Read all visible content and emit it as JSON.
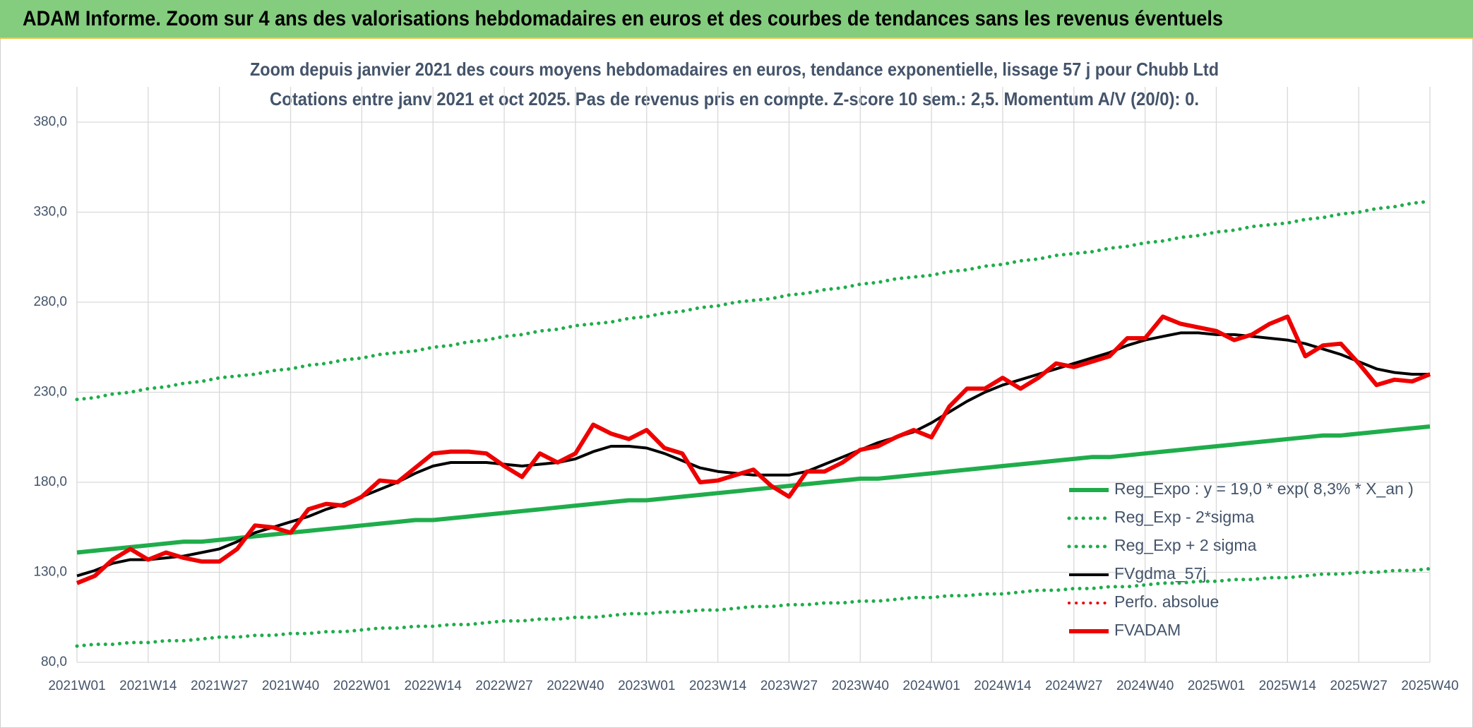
{
  "chart_data": {
    "type": "line",
    "title": "ADAM Informe. Zoom sur 4 ans des valorisations hebdomadaires en euros et des courbes de tendances sans les revenus éventuels",
    "subtitle": [
      "Zoom depuis janvier 2021 des cours moyens hebdomadaires en euros, tendance exponentielle, lissage 57 j pour Chubb Ltd",
      "Cotations entre janv 2021 et oct 2025. Pas de revenus pris en compte. Z-score 10 sem.: 2,5. Momentum A/V (20/0): 0."
    ],
    "categories": [
      "2021W01",
      null,
      null,
      null,
      "2021W14",
      null,
      null,
      null,
      "2021W27",
      null,
      null,
      null,
      "2021W40",
      null,
      null,
      null,
      "2022W01",
      null,
      null,
      null,
      "2022W14",
      null,
      null,
      null,
      "2022W27",
      null,
      null,
      null,
      "2022W40",
      null,
      null,
      null,
      "2023W01",
      null,
      null,
      null,
      "2023W14",
      null,
      null,
      null,
      "2023W27",
      null,
      null,
      null,
      "2023W40",
      null,
      null,
      null,
      "2024W01",
      null,
      null,
      null,
      "2024W14",
      null,
      null,
      null,
      "2024W27",
      null,
      null,
      null,
      "2024W40",
      null,
      null,
      null,
      "2025W01",
      null,
      null,
      null,
      "2025W14",
      null,
      null,
      null,
      "2025W27",
      null,
      null,
      null,
      "2025W40"
    ],
    "ylim": [
      80,
      380
    ],
    "yticks": [
      {
        "value": 80,
        "label": "80,0"
      },
      {
        "value": 130,
        "label": "130,0"
      },
      {
        "value": 180,
        "label": "180,0"
      },
      {
        "value": 230,
        "label": "230,0"
      },
      {
        "value": 280,
        "label": "280,0"
      },
      {
        "value": 330,
        "label": "330,0"
      },
      {
        "value": 380,
        "label": "380,0"
      }
    ],
    "grid": true,
    "legend": "bottom-right",
    "series": [
      {
        "name": "Reg_Expo : y = 19,0 * exp( 8,3% *  X_an )",
        "color": "#1fad4b",
        "style": "solid",
        "values": [
          141,
          142,
          143,
          144,
          145,
          146,
          147,
          147,
          148,
          149,
          150,
          151,
          152,
          153,
          154,
          155,
          156,
          157,
          158,
          159,
          159,
          160,
          161,
          162,
          163,
          164,
          165,
          166,
          167,
          168,
          169,
          170,
          170,
          171,
          172,
          173,
          174,
          175,
          176,
          177,
          178,
          179,
          180,
          181,
          182,
          182,
          183,
          184,
          185,
          186,
          187,
          188,
          189,
          190,
          191,
          192,
          193,
          194,
          194,
          195,
          196,
          197,
          198,
          199,
          200,
          201,
          202,
          203,
          204,
          205,
          206,
          206,
          207,
          208,
          209,
          210,
          211
        ]
      },
      {
        "name": "Reg_Exp - 2*sigma",
        "color": "#1fad4b",
        "style": "dotted",
        "values": [
          89,
          90,
          90,
          91,
          91,
          92,
          92,
          93,
          94,
          94,
          95,
          95,
          96,
          96,
          97,
          97,
          98,
          99,
          99,
          100,
          100,
          101,
          101,
          102,
          103,
          103,
          104,
          104,
          105,
          105,
          106,
          107,
          107,
          108,
          108,
          109,
          109,
          110,
          111,
          111,
          112,
          112,
          113,
          113,
          114,
          114,
          115,
          116,
          116,
          117,
          117,
          118,
          118,
          119,
          120,
          120,
          121,
          121,
          122,
          122,
          123,
          124,
          124,
          125,
          125,
          126,
          126,
          127,
          127,
          128,
          129,
          129,
          130,
          130,
          131,
          131,
          132
        ]
      },
      {
        "name": "Reg_Exp + 2 sigma",
        "color": "#1fad4b",
        "style": "dotted",
        "values": [
          226,
          227,
          229,
          230,
          232,
          233,
          235,
          236,
          238,
          239,
          240,
          242,
          243,
          245,
          246,
          248,
          249,
          251,
          252,
          253,
          255,
          256,
          258,
          259,
          261,
          262,
          264,
          265,
          267,
          268,
          269,
          271,
          272,
          274,
          275,
          277,
          278,
          280,
          281,
          282,
          284,
          285,
          287,
          288,
          290,
          291,
          293,
          294,
          295,
          297,
          298,
          300,
          301,
          303,
          304,
          306,
          307,
          308,
          310,
          311,
          313,
          314,
          316,
          317,
          319,
          320,
          322,
          323,
          324,
          326,
          327,
          329,
          330,
          332,
          333,
          335,
          336
        ]
      },
      {
        "name": "FVgdma_57j",
        "color": "#000000",
        "style": "solid",
        "values": [
          128,
          131,
          135,
          137,
          137,
          138,
          139,
          141,
          143,
          147,
          152,
          155,
          158,
          161,
          165,
          168,
          172,
          176,
          180,
          185,
          189,
          191,
          191,
          191,
          190,
          189,
          190,
          191,
          193,
          197,
          200,
          200,
          199,
          196,
          192,
          188,
          186,
          185,
          184,
          184,
          184,
          186,
          190,
          194,
          198,
          202,
          205,
          208,
          213,
          219,
          225,
          230,
          234,
          237,
          240,
          243,
          246,
          249,
          252,
          256,
          259,
          261,
          263,
          263,
          262,
          262,
          261,
          260,
          259,
          257,
          254,
          251,
          247,
          243,
          241,
          240,
          240
        ]
      },
      {
        "name": "Perfo. absolue",
        "color": "#e60000",
        "style": "dotted",
        "values": [
          null,
          null,
          null,
          null,
          null,
          null,
          null,
          null,
          null,
          null,
          null,
          null,
          null,
          null,
          null,
          null,
          null,
          null,
          null,
          null,
          null,
          null,
          null,
          null,
          null,
          null,
          null,
          null,
          null,
          null,
          null,
          null,
          null,
          null,
          null,
          null,
          null,
          null,
          null,
          null,
          null,
          null,
          null,
          null,
          null,
          null,
          null,
          null,
          null,
          null,
          null,
          null,
          null,
          null,
          null,
          null,
          null,
          null,
          null,
          null,
          null,
          null,
          null,
          null,
          null,
          null,
          null,
          null,
          null,
          null,
          null,
          null,
          null,
          null,
          null,
          null,
          null
        ]
      },
      {
        "name": "FVADAM",
        "color": "#ee0000",
        "style": "solid",
        "values": [
          124,
          128,
          137,
          143,
          137,
          141,
          138,
          136,
          136,
          143,
          156,
          155,
          152,
          165,
          168,
          167,
          172,
          181,
          180,
          188,
          196,
          197,
          197,
          196,
          189,
          183,
          196,
          191,
          196,
          212,
          207,
          204,
          209,
          199,
          196,
          180,
          181,
          184,
          187,
          178,
          172,
          186,
          186,
          191,
          198,
          200,
          205,
          209,
          205,
          222,
          232,
          232,
          238,
          232,
          238,
          246,
          244,
          247,
          250,
          260,
          260,
          272,
          268,
          266,
          264,
          259,
          262,
          268,
          272,
          250,
          256,
          257,
          246,
          234,
          237,
          236,
          240
        ]
      }
    ]
  }
}
